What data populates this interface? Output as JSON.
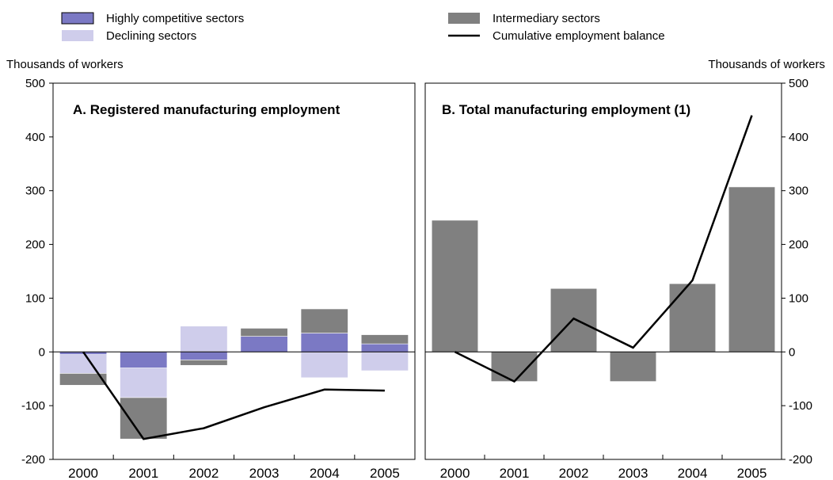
{
  "legend": {
    "items": [
      {
        "label": "Highly competitive sectors",
        "kind": "box",
        "color": "#7b79c4"
      },
      {
        "label": "Declining sectors",
        "kind": "box",
        "color": "#cfcdeb"
      },
      {
        "label": "Intermediary sectors",
        "kind": "box",
        "color": "#808080"
      },
      {
        "label": "Cumulative employment balance",
        "kind": "line",
        "color": "#000000"
      }
    ]
  },
  "axis_unit_left": "Thousands of workers",
  "axis_unit_right": "Thousands of workers",
  "chart_data": [
    {
      "type": "bar",
      "title": "A. Registered manufacturing employment",
      "stacked": true,
      "categories": [
        "2000",
        "2001",
        "2002",
        "2003",
        "2004",
        "2005"
      ],
      "ylim": [
        -200,
        500
      ],
      "yticks": [
        -200,
        -100,
        0,
        100,
        200,
        300,
        400,
        500
      ],
      "tick_labels": [
        "-200",
        "-100",
        "0",
        "100",
        "200",
        "300",
        "400",
        "500"
      ],
      "series": [
        {
          "name": "Highly competitive sectors",
          "color": "#7b79c4",
          "values": [
            -5,
            -30,
            -15,
            29,
            35,
            15
          ]
        },
        {
          "name": "Declining sectors",
          "color": "#cfcdeb",
          "values": [
            -35,
            -55,
            48,
            0,
            -48,
            -35
          ]
        },
        {
          "name": "Intermediary sectors",
          "color": "#808080",
          "values": [
            -22,
            -77,
            -10,
            15,
            45,
            17
          ]
        }
      ],
      "line": {
        "name": "Cumulative employment balance",
        "values": [
          0,
          -162,
          -142,
          -103,
          -70,
          -72
        ]
      }
    },
    {
      "type": "bar",
      "title": "B. Total manufacturing employment (1)",
      "stacked": false,
      "categories": [
        "2000",
        "2001",
        "2002",
        "2003",
        "2004",
        "2005"
      ],
      "ylim": [
        -200,
        500
      ],
      "yticks": [
        -200,
        -100,
        0,
        100,
        200,
        300,
        400,
        500
      ],
      "tick_labels": [
        "-200",
        "-100",
        "0",
        "100",
        "200",
        "300",
        "400",
        "500"
      ],
      "series": [
        {
          "name": "Intermediary sectors",
          "color": "#808080",
          "values": [
            245,
            -55,
            118,
            -55,
            127,
            307
          ]
        }
      ],
      "line": {
        "name": "Cumulative employment balance",
        "values": [
          0,
          -55,
          62,
          8,
          133,
          440
        ]
      }
    }
  ]
}
